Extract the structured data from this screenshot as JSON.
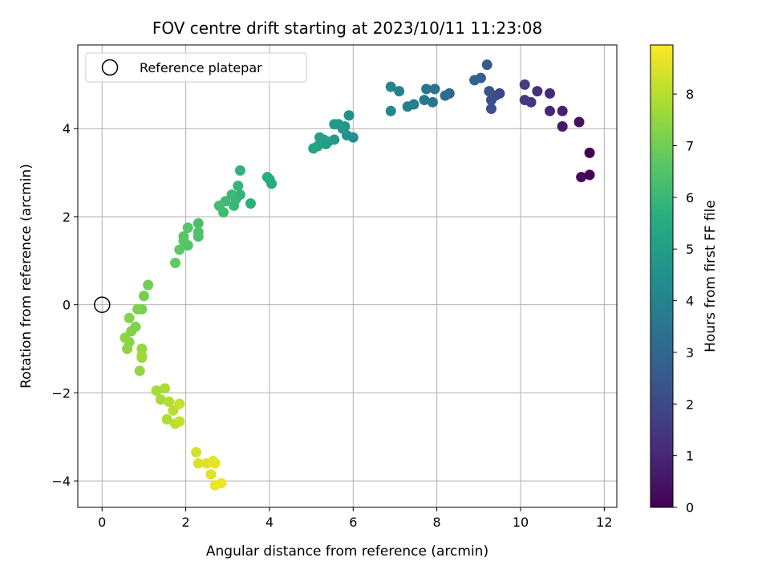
{
  "chart_data": {
    "type": "scatter",
    "title": "FOV centre drift starting at 2023/10/11 11:23:08",
    "xlabel": "Angular distance from reference (arcmin)",
    "ylabel": "Rotation from reference (arcmin)",
    "xlim": [
      -0.58,
      12.3
    ],
    "ylim": [
      -4.6,
      5.9
    ],
    "xticks": [
      0,
      2,
      4,
      6,
      8,
      10,
      12
    ],
    "yticks": [
      -4,
      -2,
      0,
      2,
      4
    ],
    "grid": true,
    "colormap": "viridis",
    "colorbar": {
      "label": "Hours from first FF file",
      "range": [
        0,
        8.95
      ],
      "ticks": [
        0,
        1,
        2,
        3,
        4,
        5,
        6,
        7,
        8
      ]
    },
    "legend": {
      "placement": "top-left",
      "entries": [
        "Reference platepar"
      ]
    },
    "reference_point": {
      "x": 0,
      "y": 0
    },
    "series": [
      {
        "points": [
          [
            11.65,
            3.45,
            0.0
          ],
          [
            11.65,
            2.95,
            0.1
          ],
          [
            11.45,
            2.9,
            0.2
          ],
          [
            11.4,
            4.15,
            0.4
          ],
          [
            11.0,
            4.05,
            0.6
          ],
          [
            11.0,
            4.4,
            0.8
          ],
          [
            10.7,
            4.4,
            1.0
          ],
          [
            10.7,
            4.8,
            1.1
          ],
          [
            10.4,
            4.85,
            1.3
          ],
          [
            10.25,
            4.6,
            1.4
          ],
          [
            10.1,
            4.65,
            1.55
          ],
          [
            10.1,
            5.0,
            1.65
          ],
          [
            9.5,
            4.8,
            1.85
          ],
          [
            9.4,
            4.75,
            2.0
          ],
          [
            9.3,
            4.65,
            2.15
          ],
          [
            9.3,
            4.45,
            2.25
          ],
          [
            9.25,
            4.85,
            2.4
          ],
          [
            9.2,
            5.45,
            2.55
          ],
          [
            9.05,
            5.15,
            2.7
          ],
          [
            8.9,
            5.1,
            2.85
          ],
          [
            8.3,
            4.8,
            3.05
          ],
          [
            8.2,
            4.75,
            3.2
          ],
          [
            7.95,
            4.9,
            3.35
          ],
          [
            7.9,
            4.6,
            3.45
          ],
          [
            7.75,
            4.9,
            3.55
          ],
          [
            7.7,
            4.65,
            3.65
          ],
          [
            7.45,
            4.55,
            3.8
          ],
          [
            7.3,
            4.5,
            3.9
          ],
          [
            7.1,
            4.85,
            4.0
          ],
          [
            6.9,
            4.95,
            4.1
          ],
          [
            6.9,
            4.4,
            4.2
          ],
          [
            6.0,
            3.8,
            4.4
          ],
          [
            5.9,
            4.3,
            4.5
          ],
          [
            5.85,
            3.85,
            4.6
          ],
          [
            5.8,
            4.05,
            4.65
          ],
          [
            5.75,
            4.0,
            4.7
          ],
          [
            5.65,
            4.1,
            4.8
          ],
          [
            5.55,
            4.1,
            4.85
          ],
          [
            5.55,
            3.75,
            4.9
          ],
          [
            5.4,
            3.7,
            4.95
          ],
          [
            5.35,
            3.65,
            5.0
          ],
          [
            5.3,
            3.75,
            5.05
          ],
          [
            5.2,
            3.8,
            5.1
          ],
          [
            5.15,
            3.6,
            5.15
          ],
          [
            5.05,
            3.55,
            5.2
          ],
          [
            4.05,
            2.75,
            5.5
          ],
          [
            4.0,
            2.85,
            5.55
          ],
          [
            3.95,
            2.9,
            5.6
          ],
          [
            3.55,
            2.3,
            5.7
          ],
          [
            3.3,
            3.05,
            5.8
          ],
          [
            3.3,
            2.5,
            5.85
          ],
          [
            3.25,
            2.7,
            5.9
          ],
          [
            3.2,
            2.4,
            5.95
          ],
          [
            3.15,
            2.25,
            6.0
          ],
          [
            3.1,
            2.5,
            6.05
          ],
          [
            2.95,
            2.35,
            6.1
          ],
          [
            2.9,
            2.1,
            6.15
          ],
          [
            2.8,
            2.25,
            6.2
          ],
          [
            2.3,
            1.85,
            6.35
          ],
          [
            2.3,
            1.55,
            6.4
          ],
          [
            2.3,
            1.65,
            6.45
          ],
          [
            2.05,
            1.35,
            6.5
          ],
          [
            2.05,
            1.75,
            6.55
          ],
          [
            1.95,
            1.55,
            6.6
          ],
          [
            1.95,
            1.45,
            6.65
          ],
          [
            1.85,
            1.25,
            6.7
          ],
          [
            1.75,
            0.95,
            6.75
          ],
          [
            1.1,
            0.45,
            7.0
          ],
          [
            1.0,
            0.2,
            7.05
          ],
          [
            0.95,
            -0.1,
            7.1
          ],
          [
            0.85,
            -0.1,
            7.15
          ],
          [
            0.8,
            -0.5,
            7.2
          ],
          [
            0.7,
            -0.6,
            7.25
          ],
          [
            0.65,
            -0.3,
            7.3
          ],
          [
            0.65,
            -0.85,
            7.35
          ],
          [
            0.6,
            -1.0,
            7.4
          ],
          [
            0.55,
            -0.75,
            7.45
          ],
          [
            0.9,
            -1.5,
            7.5
          ],
          [
            0.95,
            -1.0,
            7.55
          ],
          [
            0.95,
            -1.2,
            7.6
          ],
          [
            0.95,
            -1.15,
            7.65
          ],
          [
            1.3,
            -1.95,
            7.75
          ],
          [
            1.4,
            -2.15,
            7.8
          ],
          [
            1.5,
            -1.9,
            7.85
          ],
          [
            1.55,
            -2.6,
            7.9
          ],
          [
            1.6,
            -2.2,
            7.95
          ],
          [
            1.7,
            -2.4,
            8.0
          ],
          [
            1.75,
            -2.7,
            8.05
          ],
          [
            1.85,
            -2.25,
            8.1
          ],
          [
            1.85,
            -2.65,
            8.15
          ],
          [
            1.85,
            -2.25,
            8.2
          ],
          [
            2.25,
            -3.35,
            8.4
          ],
          [
            2.3,
            -3.6,
            8.45
          ],
          [
            2.5,
            -3.6,
            8.5
          ],
          [
            2.6,
            -3.85,
            8.55
          ],
          [
            2.65,
            -3.55,
            8.6
          ],
          [
            2.7,
            -3.6,
            8.65
          ],
          [
            2.7,
            -4.1,
            8.7
          ],
          [
            2.85,
            -4.05,
            8.75
          ]
        ]
      }
    ]
  }
}
